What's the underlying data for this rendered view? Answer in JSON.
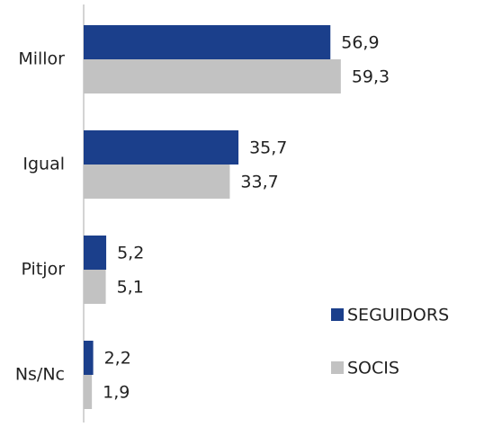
{
  "chart_data": {
    "type": "hbar",
    "categories": [
      "Millor",
      "Igual",
      "Pitjor",
      "Ns/Nc"
    ],
    "series": [
      {
        "name": "SEGUIDORS",
        "color": "#1b3f8b",
        "values": [
          56.9,
          35.7,
          5.2,
          2.2
        ],
        "value_labels": [
          "56,9",
          "35,7",
          "5,2",
          "2,2"
        ]
      },
      {
        "name": "SOCIS",
        "color": "#c2c2c2",
        "values": [
          59.3,
          33.7,
          5.1,
          1.9
        ],
        "value_labels": [
          "59,3",
          "33,7",
          "5,1",
          "1,9"
        ]
      }
    ],
    "legend": "lower right"
  }
}
